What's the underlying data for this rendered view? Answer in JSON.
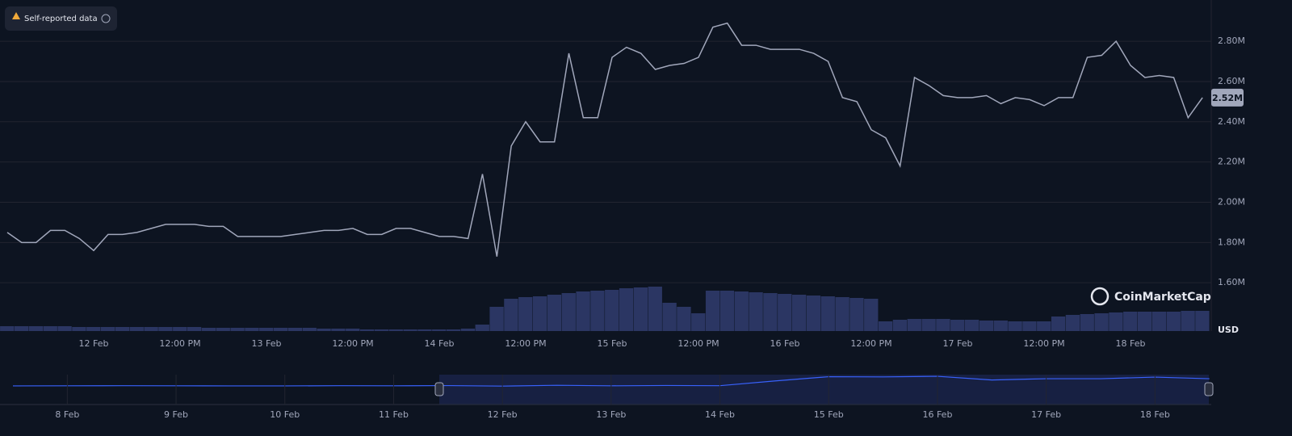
{
  "badge": "Self-reported data",
  "watermark": "CoinMarketCap",
  "chart_data": {
    "type": "line",
    "currency": "USD",
    "color": "#a1a7bb",
    "categories": [
      null,
      null,
      null,
      null,
      null,
      null,
      "12 Feb",
      null,
      null,
      null,
      null,
      null,
      "12:00 PM",
      null,
      null,
      null,
      null,
      null,
      "13 Feb",
      null,
      null,
      null,
      null,
      null,
      "12:00 PM",
      null,
      null,
      null,
      null,
      null,
      "14 Feb",
      null,
      null,
      null,
      null,
      null,
      "12:00 PM",
      null,
      null,
      null,
      null,
      null,
      "15 Feb",
      null,
      null,
      null,
      null,
      null,
      "12:00 PM",
      null,
      null,
      null,
      null,
      null,
      "16 Feb",
      null,
      null,
      null,
      null,
      null,
      "12:00 PM",
      null,
      null,
      null,
      null,
      null,
      "17 Feb",
      null,
      null,
      null,
      null,
      null,
      "12:00 PM",
      null,
      null,
      null,
      null,
      null,
      "18 Feb",
      null,
      null,
      null,
      null,
      null
    ],
    "values": [
      1850000,
      1800000,
      1800000,
      1860000,
      1860000,
      1820000,
      1760000,
      1840000,
      1840000,
      1850000,
      1870000,
      1890000,
      1890000,
      1890000,
      1880000,
      1880000,
      1830000,
      1830000,
      1830000,
      1830000,
      1840000,
      1850000,
      1860000,
      1860000,
      1870000,
      1840000,
      1840000,
      1870000,
      1870000,
      1850000,
      1830000,
      1830000,
      1820000,
      2140000,
      1730000,
      2280000,
      2400000,
      2300000,
      2300000,
      2740000,
      2420000,
      2420000,
      2720000,
      2770000,
      2740000,
      2660000,
      2680000,
      2690000,
      2720000,
      2870000,
      2890000,
      2780000,
      2780000,
      2760000,
      2760000,
      2760000,
      2740000,
      2700000,
      2520000,
      2500000,
      2360000,
      2320000,
      2180000,
      2620000,
      2580000,
      2530000,
      2520000,
      2520000,
      2530000,
      2490000,
      2520000,
      2510000,
      2480000,
      2520000,
      2520000,
      2720000,
      2730000,
      2800000,
      2680000,
      2620000,
      2630000,
      2620000,
      2420000,
      2520000
    ],
    "volume": {
      "color": "#2b3663",
      "values": [
        6,
        6,
        6,
        6,
        6,
        5,
        5,
        5,
        5,
        5,
        5,
        5,
        5,
        5,
        4,
        4,
        4,
        4,
        4,
        4,
        4,
        4,
        3,
        3,
        3,
        2,
        2,
        2,
        2,
        2,
        2,
        2,
        3,
        8,
        30,
        40,
        42,
        43,
        45,
        47,
        49,
        50,
        51,
        53,
        54,
        55,
        35,
        30,
        22,
        50,
        50,
        49,
        48,
        47,
        46,
        45,
        44,
        43,
        42,
        41,
        40,
        12,
        14,
        15,
        15,
        15,
        14,
        14,
        13,
        13,
        12,
        12,
        12,
        18,
        20,
        21,
        22,
        23,
        24,
        24,
        24,
        24,
        25,
        25
      ]
    },
    "current": {
      "value": 2520000,
      "label": "2.52M"
    },
    "ylim": [
      1360000,
      3005000
    ],
    "yticks": [
      {
        "value": 1600000,
        "label": "1.60M"
      },
      {
        "value": 1800000,
        "label": "1.80M"
      },
      {
        "value": 2000000,
        "label": "2.00M"
      },
      {
        "value": 2200000,
        "label": "2.20M"
      },
      {
        "value": 2400000,
        "label": "2.40M"
      },
      {
        "value": 2600000,
        "label": "2.60M"
      },
      {
        "value": 2800000,
        "label": "2.80M"
      }
    ],
    "grid": true,
    "navigator": {
      "color": "#3861fb",
      "categories": [
        null,
        "8 Feb",
        null,
        "9 Feb",
        null,
        "10 Feb",
        null,
        "11 Feb",
        null,
        "12 Feb",
        null,
        "13 Feb",
        null,
        "14 Feb",
        null,
        "15 Feb",
        null,
        "16 Feb",
        null,
        "17 Feb",
        null,
        "18 Feb",
        null
      ],
      "values": [
        1820000,
        1830000,
        1840000,
        1830000,
        1820000,
        1820000,
        1840000,
        1830000,
        1850000,
        1800000,
        1880000,
        1830000,
        1860000,
        1840000,
        2300000,
        2720000,
        2700000,
        2760000,
        2400000,
        2520000,
        2520000,
        2680000,
        2520000
      ],
      "ylim": [
        0,
        3000000
      ]
    }
  }
}
